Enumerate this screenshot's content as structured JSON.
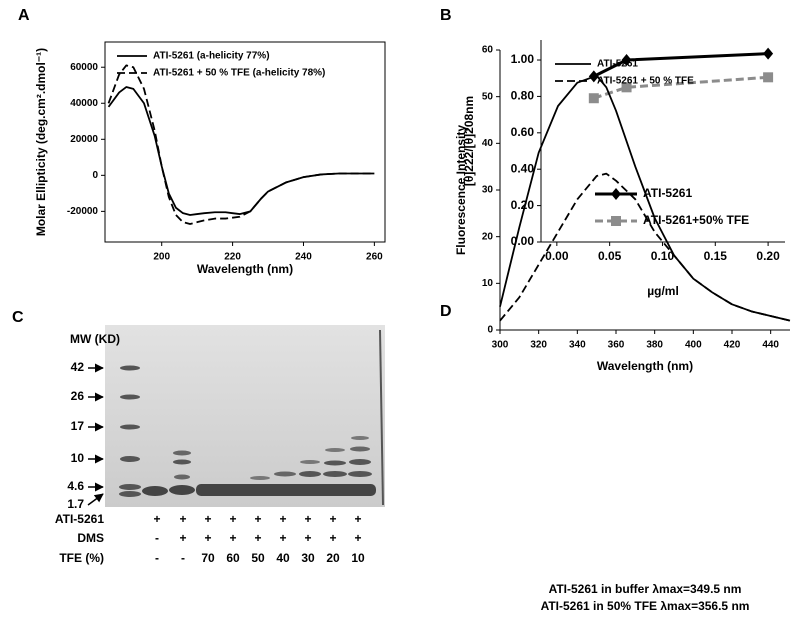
{
  "chart_data": [
    {
      "type": "line",
      "label": "A",
      "x_label": "Wavelength (nm)",
      "y_label": "Molar Ellipticity (deg.cm².dmol⁻¹)",
      "x": [
        185,
        188,
        190,
        192,
        195,
        198,
        200,
        202,
        204,
        206,
        208,
        210,
        212,
        215,
        218,
        220,
        222,
        225,
        228,
        230,
        235,
        240,
        245,
        250,
        255,
        260
      ],
      "series": [
        {
          "name": "ATI-5261 (a-helicity 77%)",
          "color": "#000000",
          "line_style": "solid",
          "values": [
            38000,
            46000,
            49000,
            48000,
            40000,
            22000,
            5000,
            -10000,
            -18000,
            -21000,
            -22000,
            -21500,
            -21000,
            -20500,
            -20500,
            -21000,
            -21500,
            -20000,
            -13000,
            -9000,
            -4000,
            -1000,
            500,
            1000,
            1000,
            1000
          ]
        },
        {
          "name": "ATI-5261 + 50 % TFE (a-helicity 78%)",
          "color": "#000000",
          "line_style": "dashed",
          "values": [
            40000,
            56000,
            61000,
            60000,
            48000,
            25000,
            5000,
            -12000,
            -22000,
            -26000,
            -27000,
            -26000,
            -25000,
            -24000,
            -24000,
            -23500,
            -23000,
            -20000,
            -13000,
            -9000,
            -4000,
            -1000,
            500,
            1000,
            1000,
            1000
          ]
        }
      ],
      "xlim": [
        184,
        263
      ],
      "ylim": [
        -37000,
        74000
      ],
      "xticks": [
        200,
        220,
        240,
        260
      ],
      "yticks": [
        -20000,
        0,
        20000,
        40000,
        60000
      ],
      "legend": "upper left"
    },
    {
      "type": "line",
      "label": "B",
      "x_label": "µg/ml",
      "y_label": "[θ]222/[θ]208nm",
      "x": [
        0.035,
        0.066,
        0.2
      ],
      "series": [
        {
          "name": "ATI-5261",
          "color": "#000000",
          "line_style": "solid",
          "marker": "diamond",
          "values": [
            0.91,
            1.0,
            1.035
          ]
        },
        {
          "name": "ATI-5261+50% TFE",
          "color": "#8c8c8c",
          "line_style": "dashed",
          "marker": "square",
          "values": [
            0.79,
            0.85,
            0.905
          ]
        }
      ],
      "xlim": [
        -0.015,
        0.216
      ],
      "ylim": [
        0,
        1.11
      ],
      "xticks": [
        {
          "value": 0,
          "label": "0.00"
        },
        0.05,
        {
          "value": 0.1,
          "label": "0.10"
        },
        0.15,
        {
          "value": 0.2,
          "label": "0.20"
        }
      ],
      "yticks": [
        {
          "value": 0,
          "label": "0.00"
        },
        {
          "value": 0.2,
          "label": "0.20"
        },
        {
          "value": 0.4,
          "label": "0.40"
        },
        {
          "value": 0.6,
          "label": "0.60"
        },
        {
          "value": 0.8,
          "label": "0.80"
        },
        {
          "value": 1,
          "label": "1.00"
        }
      ],
      "legend": "lower right"
    },
    {
      "type": "line",
      "label": "D",
      "x_label": "Wavelength (nm)",
      "y_label": "Fluorescence Intensity",
      "x": [
        300,
        310,
        320,
        330,
        340,
        350,
        355,
        360,
        370,
        380,
        390,
        400,
        410,
        420,
        430,
        440,
        450
      ],
      "series": [
        {
          "name": "ATI-5261",
          "color": "#000000",
          "line_style": "solid",
          "values": [
            5,
            22,
            38,
            48,
            53,
            54.5,
            52,
            47,
            35,
            24,
            16,
            11,
            8,
            5.5,
            4,
            3,
            2
          ]
        },
        {
          "name": "ATI-5261 + 50 % TFE",
          "color": "#000000",
          "line_style": "dashed",
          "values": [
            2,
            7,
            14,
            21,
            28,
            33,
            33.5,
            32,
            28,
            21,
            16,
            11,
            8,
            5.5,
            4,
            3,
            2
          ]
        }
      ],
      "xlim": [
        300,
        450
      ],
      "ylim": [
        0,
        60
      ],
      "xticks": [
        300,
        320,
        340,
        360,
        380,
        400,
        420,
        440
      ],
      "yticks": [
        0,
        10,
        20,
        30,
        40,
        50,
        60
      ],
      "legend": "upper right",
      "annotations": [
        "ATI-5261 in buffer λmax=349.5 nm",
        "ATI-5261 in 50% TFE λmax=356.5 nm"
      ]
    }
  ],
  "gel": {
    "label": "C",
    "mw_title": "MW (KD)",
    "markers": [
      "42",
      "26",
      "17",
      "10",
      "4.6",
      "1.7"
    ],
    "rows": [
      {
        "name": "ATI-5261",
        "lanes": [
          "+",
          "+",
          "+",
          "+",
          "+",
          "+",
          "+",
          "+",
          "+"
        ]
      },
      {
        "name": "DMS",
        "lanes": [
          "-",
          "+",
          "+",
          "+",
          "+",
          "+",
          "+",
          "+",
          "+"
        ]
      },
      {
        "name": "TFE (%)",
        "lanes": [
          "-",
          "-",
          "70",
          "60",
          "50",
          "40",
          "30",
          "20",
          "10"
        ]
      }
    ]
  }
}
